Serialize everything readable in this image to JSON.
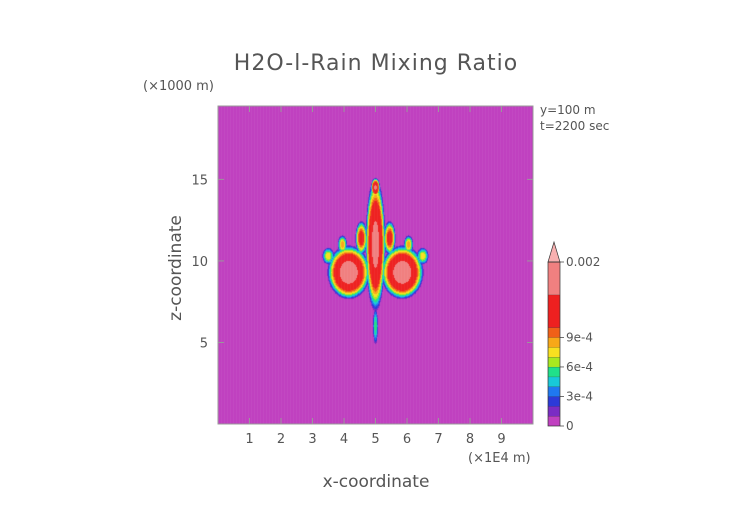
{
  "chart_data": {
    "type": "heatmap",
    "title": "H2O-l-Rain Mixing Ratio",
    "xlabel": "x-coordinate",
    "ylabel": "z-coordinate",
    "x_unit_label": "(×1E4 m)",
    "y_unit_label": "(×1000 m)",
    "annotations": [
      "y=100 m",
      "t=2200 sec"
    ],
    "xlim": [
      0,
      10
    ],
    "ylim": [
      0,
      19.5
    ],
    "x_ticks": [
      1,
      2,
      3,
      4,
      5,
      6,
      7,
      8,
      9
    ],
    "y_ticks": [
      5,
      10,
      15
    ],
    "grid": false,
    "legend_position": "right",
    "colorbar": {
      "labels": [
        {
          "value": 0,
          "text": "0"
        },
        {
          "value": 0.0003,
          "text": "3e-4"
        },
        {
          "value": 0.0006,
          "text": "6e-4"
        },
        {
          "value": 0.0009,
          "text": "9e-4"
        },
        {
          "value": 0.002,
          "text": "0.002"
        }
      ],
      "bands": [
        {
          "from": 0,
          "to": 0.0001,
          "color": "#c040c0"
        },
        {
          "from": 0.0001,
          "to": 0.0002,
          "color": "#7a2cc4"
        },
        {
          "from": 0.0002,
          "to": 0.0003,
          "color": "#2c3ad8"
        },
        {
          "from": 0.0003,
          "to": 0.0004,
          "color": "#1f78f0"
        },
        {
          "from": 0.0004,
          "to": 0.0005,
          "color": "#18c8d8"
        },
        {
          "from": 0.0005,
          "to": 0.0006,
          "color": "#20e08a"
        },
        {
          "from": 0.0006,
          "to": 0.0007,
          "color": "#a8e820"
        },
        {
          "from": 0.0007,
          "to": 0.0008,
          "color": "#f8e020"
        },
        {
          "from": 0.0008,
          "to": 0.0009,
          "color": "#f8a818"
        },
        {
          "from": 0.0009,
          "to": 0.001,
          "color": "#f06018"
        },
        {
          "from": 0.001,
          "to": 0.0015,
          "color": "#ee2020"
        },
        {
          "from": 0.0015,
          "to": 0.002,
          "color": "#f08080"
        }
      ],
      "over_color": "#f8b0b0"
    },
    "field": {
      "background_value": 0,
      "blobs": [
        {
          "name": "central column",
          "cx": 5.0,
          "cz": 11.0,
          "rx": 0.33,
          "rz": 4.2,
          "peak": 0.0017
        },
        {
          "name": "column tip",
          "cx": 5.0,
          "cz": 14.5,
          "rx": 0.15,
          "rz": 0.6,
          "peak": 0.0016
        },
        {
          "name": "left lobe",
          "cx": 4.15,
          "cz": 9.3,
          "rx": 0.7,
          "rz": 1.7,
          "peak": 0.0018
        },
        {
          "name": "right lobe",
          "cx": 5.85,
          "cz": 9.3,
          "rx": 0.7,
          "rz": 1.7,
          "peak": 0.0018
        },
        {
          "name": "left inner plume",
          "cx": 4.55,
          "cz": 11.4,
          "rx": 0.2,
          "rz": 1.1,
          "peak": 0.0012
        },
        {
          "name": "right inner plume",
          "cx": 5.45,
          "cz": 11.4,
          "rx": 0.2,
          "rz": 1.1,
          "peak": 0.0012
        },
        {
          "name": "left mid finger",
          "cx": 3.95,
          "cz": 11.0,
          "rx": 0.16,
          "rz": 0.6,
          "peak": 0.0009
        },
        {
          "name": "right mid finger",
          "cx": 6.05,
          "cz": 11.0,
          "rx": 0.16,
          "rz": 0.6,
          "peak": 0.0009
        },
        {
          "name": "left outer wing",
          "cx": 3.5,
          "cz": 10.3,
          "rx": 0.2,
          "rz": 0.55,
          "peak": 0.0008
        },
        {
          "name": "right outer wing",
          "cx": 6.5,
          "cz": 10.3,
          "rx": 0.2,
          "rz": 0.55,
          "peak": 0.0008
        },
        {
          "name": "lower stem",
          "cx": 5.0,
          "cz": 6.0,
          "rx": 0.09,
          "rz": 1.2,
          "peak": 0.0006
        }
      ]
    }
  }
}
